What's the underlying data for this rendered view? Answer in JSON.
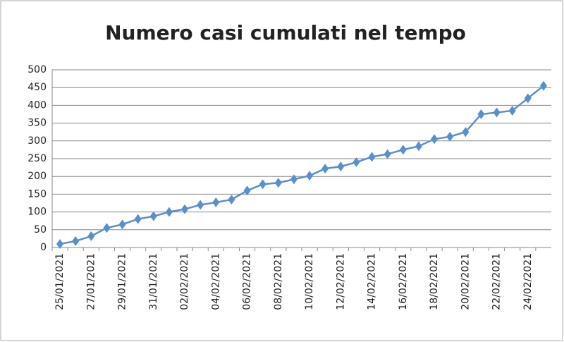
{
  "chart_data": {
    "type": "line",
    "title": "Numero casi cumulati nel tempo",
    "categories": [
      "25/01/2021",
      null,
      "27/01/2021",
      null,
      "29/01/2021",
      null,
      "31/01/2021",
      null,
      "02/02/2021",
      null,
      "04/02/2021",
      null,
      "06/02/2021",
      null,
      "08/02/2021",
      null,
      "10/02/2021",
      null,
      "12/02/2021",
      null,
      "14/02/2021",
      null,
      "16/02/2021",
      null,
      "18/02/2021",
      null,
      "20/02/2021",
      null,
      "22/02/2021",
      null,
      "24/02/2021",
      null
    ],
    "values": [
      10,
      18,
      32,
      55,
      65,
      80,
      88,
      100,
      108,
      120,
      127,
      135,
      160,
      178,
      182,
      192,
      202,
      222,
      228,
      240,
      255,
      263,
      275,
      285,
      305,
      312,
      325,
      375,
      380,
      385,
      420,
      455
    ],
    "color": "#5b8fc9",
    "ylim": [
      0,
      500
    ],
    "yticks": [
      0,
      50,
      100,
      150,
      200,
      250,
      300,
      350,
      400,
      450,
      500
    ],
    "grid": true
  }
}
